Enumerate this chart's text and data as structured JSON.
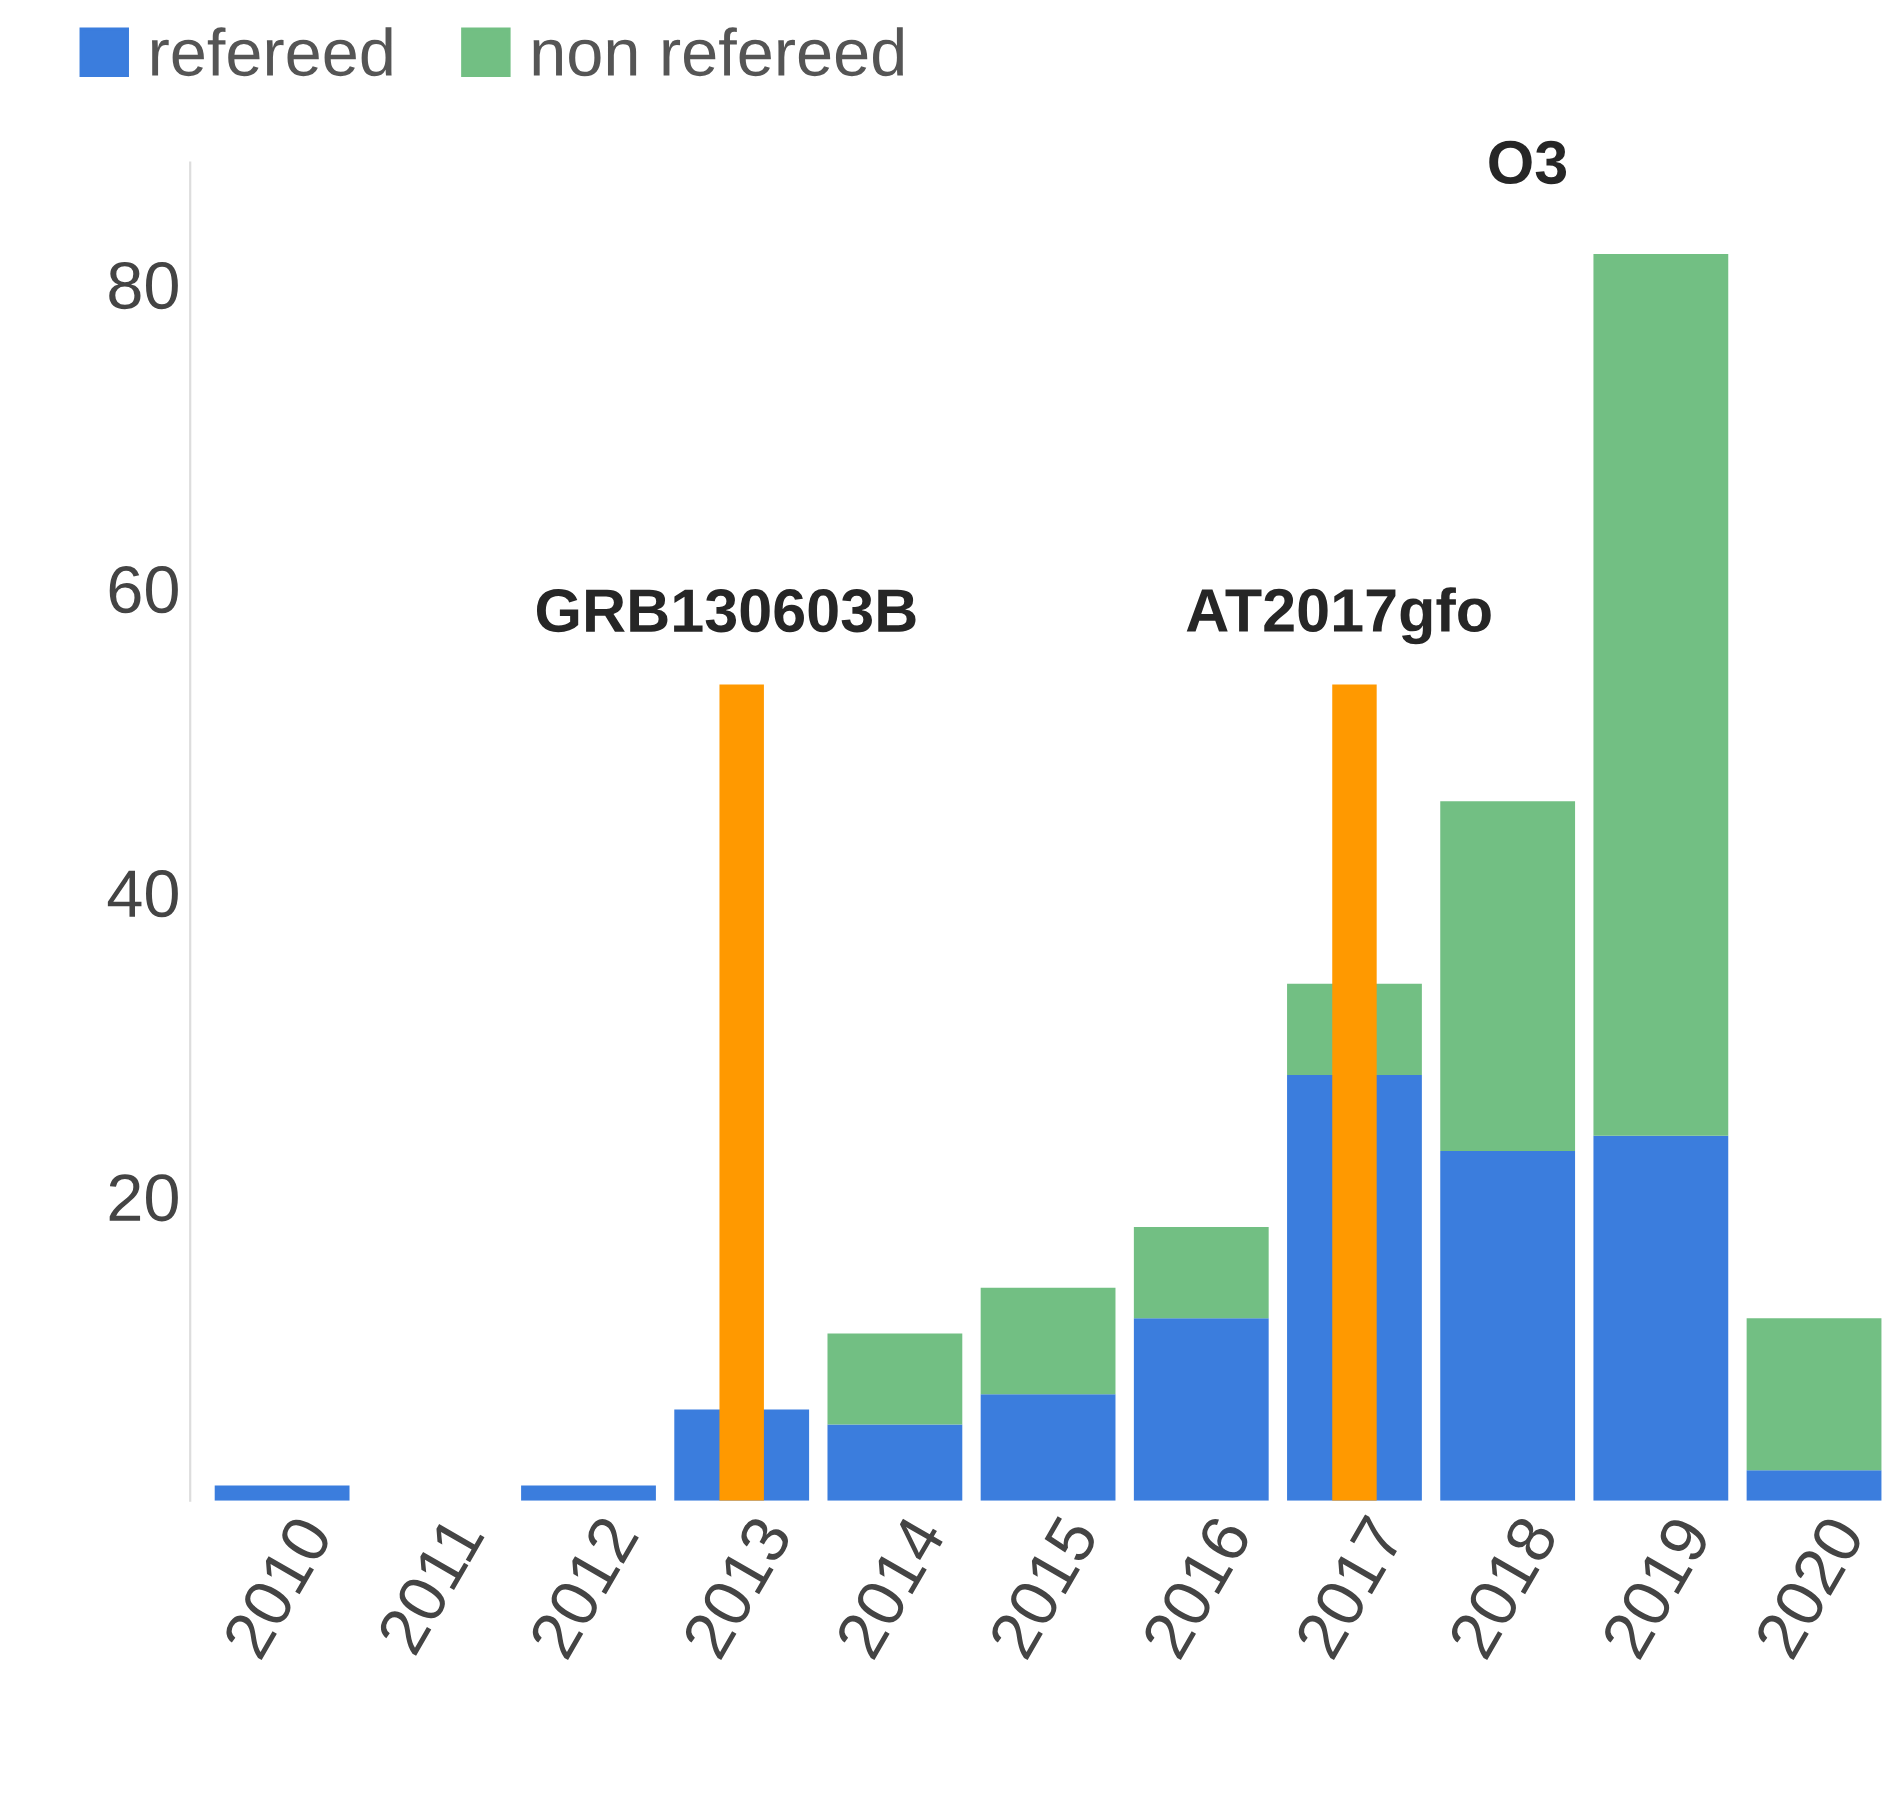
{
  "chart_data": {
    "type": "bar",
    "stacked": true,
    "legend": "top left",
    "categories": [
      "2010",
      "2011",
      "2012",
      "2013",
      "2014",
      "2015",
      "2016",
      "2017",
      "2018",
      "2019",
      "2020"
    ],
    "series": [
      {
        "name": "refereed",
        "color": "#3b7ddd",
        "values": [
          1,
          0,
          1,
          6,
          5,
          7,
          12,
          28,
          23,
          24,
          2
        ]
      },
      {
        "name": "non refereed",
        "color": "#72bf83",
        "values": [
          0,
          0,
          0,
          0,
          6,
          7,
          6,
          6,
          23,
          58,
          10
        ]
      }
    ],
    "ylim": [
      0,
      88
    ],
    "yticks": [
      20,
      40,
      60,
      80
    ],
    "grid": false,
    "ref_lines": [
      {
        "axis": "x",
        "value": "2013",
        "label": "GRB130603B",
        "color": "#ff9900"
      },
      {
        "axis": "x",
        "value": "2017",
        "label": "AT2017gfo",
        "color": "#ff9900"
      }
    ],
    "annotations": [
      "O3"
    ]
  }
}
